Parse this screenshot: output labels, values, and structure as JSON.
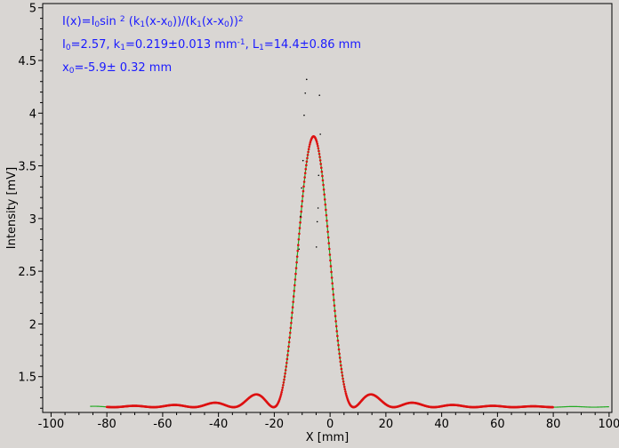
{
  "chart_data": {
    "type": "scatter",
    "title": "",
    "xlabel": "X [mm]",
    "ylabel": "Intensity [mV]",
    "xlim": [
      -103,
      101
    ],
    "ylim": [
      1.16,
      5.04
    ],
    "x_ticks": [
      -100,
      -80,
      -60,
      -40,
      -20,
      0,
      20,
      40,
      60,
      80,
      100
    ],
    "x_tick_labels": [
      "-100",
      "-80",
      "-60",
      "-40",
      "-20",
      "0",
      "20",
      "40",
      "60",
      "80",
      "100"
    ],
    "y_ticks": [
      1.5,
      2,
      2.5,
      3,
      3.5,
      4,
      4.5,
      5
    ],
    "y_tick_labels": [
      "1.5",
      "2",
      "2.5",
      "3",
      "3.5",
      "4",
      "4.5",
      "5"
    ],
    "grid": false,
    "legend": "none",
    "colors": {
      "data": "#000000",
      "fit_model": "#22aa22",
      "fit_points": "#dd1111",
      "annotation": "#1a1aff",
      "background": "#d9d6d3"
    },
    "fit": {
      "I0": 2.57,
      "k1": 0.219,
      "x0": -5.9,
      "baseline": 1.21,
      "model_x_range": [
        -86,
        100
      ],
      "fit_x_range": [
        -80,
        80
      ]
    },
    "outliers": [
      {
        "x": -8.4,
        "y": 4.32
      },
      {
        "x": -8.9,
        "y": 4.19
      },
      {
        "x": -3.8,
        "y": 4.17
      },
      {
        "x": -9.3,
        "y": 3.98
      },
      {
        "x": -3.5,
        "y": 3.8
      },
      {
        "x": -9.7,
        "y": 3.55
      },
      {
        "x": -4.1,
        "y": 3.41
      },
      {
        "x": -10.2,
        "y": 3.29
      },
      {
        "x": -4.3,
        "y": 3.1
      },
      {
        "x": -10.6,
        "y": 3.02
      },
      {
        "x": -4.6,
        "y": 2.97
      },
      {
        "x": -11.1,
        "y": 2.71
      },
      {
        "x": -4.9,
        "y": 2.73
      }
    ],
    "annotations": {
      "line1": {
        "parts": [
          {
            "t": "I(x)=I",
            "s": ""
          },
          {
            "t": "0",
            "s": "sub"
          },
          {
            "t": "sin ",
            "s": ""
          },
          {
            "t": "2",
            "s": "sup"
          },
          {
            "t": " (k",
            "s": ""
          },
          {
            "t": "1",
            "s": "sub"
          },
          {
            "t": "(x-x",
            "s": ""
          },
          {
            "t": "0",
            "s": "sub"
          },
          {
            "t": "))/(k",
            "s": ""
          },
          {
            "t": "1",
            "s": "sub"
          },
          {
            "t": "(x-x",
            "s": ""
          },
          {
            "t": "0",
            "s": "sub"
          },
          {
            "t": "))",
            "s": ""
          },
          {
            "t": "2",
            "s": "sup"
          }
        ]
      },
      "line2": {
        "parts": [
          {
            "t": "I",
            "s": ""
          },
          {
            "t": "0",
            "s": "sub"
          },
          {
            "t": "=2.57,  k",
            "s": ""
          },
          {
            "t": "1",
            "s": "sub"
          },
          {
            "t": "=0.219±0.013 mm",
            "s": ""
          },
          {
            "t": "-1",
            "s": "sup"
          },
          {
            "t": ",   L",
            "s": ""
          },
          {
            "t": "1",
            "s": "sub"
          },
          {
            "t": "=14.4±0.86 mm",
            "s": ""
          }
        ]
      },
      "line3": {
        "parts": [
          {
            "t": "x",
            "s": ""
          },
          {
            "t": "0",
            "s": "sub"
          },
          {
            "t": "=-5.9±   0.32 mm",
            "s": ""
          }
        ]
      }
    }
  }
}
